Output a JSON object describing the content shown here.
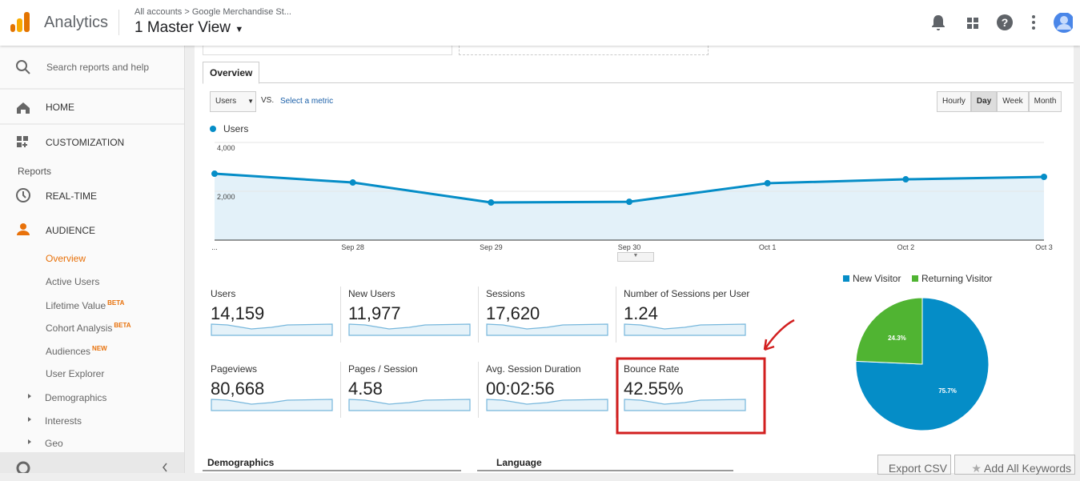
{
  "header": {
    "product": "Analytics",
    "breadcrumb": "All accounts > Google Merchandise St...",
    "view": "1 Master View"
  },
  "sidebar": {
    "search": "Search reports and help",
    "home": "HOME",
    "customization": "CUSTOMIZATION",
    "section": "Reports",
    "realtime": "REAL-TIME",
    "audience": "AUDIENCE",
    "items": [
      {
        "label": "Overview"
      },
      {
        "label": "Active Users"
      },
      {
        "label": "Lifetime Value",
        "badge": "BETA"
      },
      {
        "label": "Cohort Analysis",
        "badge": "BETA"
      },
      {
        "label": "Audiences",
        "badge": "NEW"
      },
      {
        "label": "User Explorer"
      }
    ],
    "groups": [
      "Demographics",
      "Interests",
      "Geo"
    ]
  },
  "tab": "Overview",
  "controls": {
    "metric": "Users",
    "vs": "VS.",
    "select": "Select a metric",
    "granularity": [
      "Hourly",
      "Day",
      "Week",
      "Month"
    ]
  },
  "line_chart": {
    "type": "line",
    "categories": [
      "...",
      "Sep 28",
      "Sep 29",
      "Sep 30",
      "Oct 1",
      "Oct 2",
      "Oct 3"
    ],
    "series": [
      {
        "name": "Users",
        "color": "#058dc7",
        "values": [
          2720,
          2360,
          1540,
          1570,
          2330,
          2490,
          2590
        ]
      }
    ],
    "ylim": [
      0,
      4000
    ],
    "yticks": [
      {
        "value": 2000,
        "label": "2,000"
      },
      {
        "value": 4000,
        "label": "4,000"
      }
    ],
    "grid": true
  },
  "scorecards": [
    {
      "label": "Users",
      "value": "14,159"
    },
    {
      "label": "New Users",
      "value": "11,977"
    },
    {
      "label": "Sessions",
      "value": "17,620"
    },
    {
      "label": "Number of Sessions per User",
      "value": "1.24"
    },
    {
      "label": "Pageviews",
      "value": "80,668"
    },
    {
      "label": "Pages / Session",
      "value": "4.58"
    },
    {
      "label": "Avg. Session Duration",
      "value": "00:02:56"
    },
    {
      "label": "Bounce Rate",
      "value": "42.55%"
    }
  ],
  "pie_chart": {
    "type": "pie",
    "categories": [
      "New Visitor",
      "Returning Visitor"
    ],
    "values": [
      75.7,
      24.3
    ],
    "value_labels": [
      "75.7%",
      "24.3%"
    ],
    "colors": [
      "#058dc7",
      "#50b432"
    ]
  },
  "bottom": {
    "demographics": "Demographics",
    "language": "Language",
    "export": "Export CSV",
    "keywords": "Add All Keywords"
  }
}
